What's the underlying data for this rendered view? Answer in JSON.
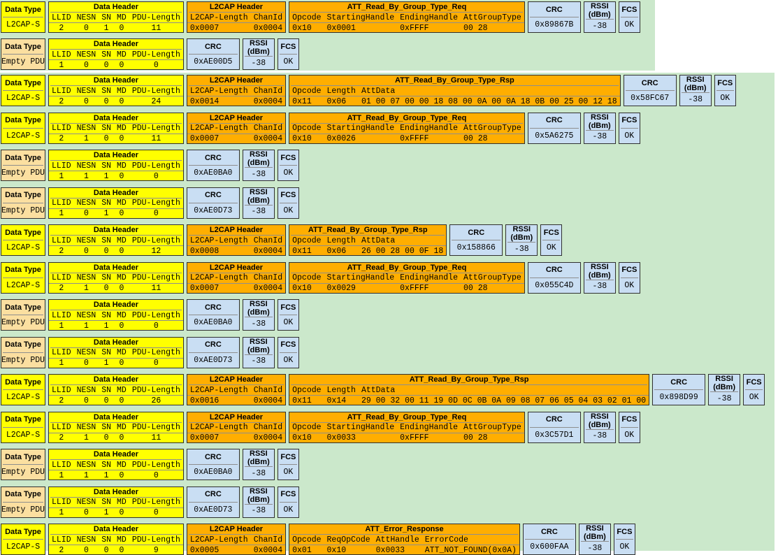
{
  "colors": {
    "panel_green": "#cbe8cb",
    "field_yellow": "#ffff00",
    "field_orange": "#ffae00",
    "field_blue": "#c9def3",
    "field_wheat": "#fbdfa0",
    "box_border": "#303030",
    "separator": "#8e8e8e"
  },
  "labels": {
    "data_type": "Data Type",
    "data_header": "Data Header",
    "data_header_fields": [
      "LLID",
      "NESN",
      "SN",
      "MD",
      "PDU-Length"
    ],
    "l2cap_header": "L2CAP Header",
    "l2cap_fields": [
      "L2CAP-Length",
      "ChanId"
    ],
    "crc": "CRC",
    "rssi_lines": [
      "RSSI",
      "(dBm)"
    ],
    "fcs": "FCS"
  },
  "packets": [
    {
      "panel": 0,
      "data_type": "L2CAP-S",
      "header": [
        "2",
        "0",
        "1",
        "0",
        "11"
      ],
      "l2cap": [
        "0x0007",
        "0x0004"
      ],
      "att": {
        "title": "ATT_Read_By_Group_Type_Req",
        "fields": [
          [
            "Opcode",
            "0x10"
          ],
          [
            "StartingHandle",
            "0x0001"
          ],
          [
            "EndingHandle",
            "0xFFFF"
          ],
          [
            "AttGroupType",
            "00 28"
          ]
        ]
      },
      "crc": "0x89867B",
      "rssi": "-38",
      "fcs": "OK"
    },
    {
      "panel": 0,
      "data_type": "Empty PDU",
      "header": [
        "1",
        "0",
        "0",
        "0",
        "0"
      ],
      "crc": "0xAE00D5",
      "rssi": "-38",
      "fcs": "OK"
    },
    {
      "panel": 1,
      "data_type": "L2CAP-S",
      "header": [
        "2",
        "0",
        "0",
        "0",
        "24"
      ],
      "l2cap": [
        "0x0014",
        "0x0004"
      ],
      "att": {
        "title": "ATT_Read_By_Group_Type_Rsp",
        "fields": [
          [
            "Opcode",
            "0x11"
          ],
          [
            "Length",
            "0x06"
          ],
          [
            "AttData",
            "01 00 07 00 00 18 08 00 0A 00 0A 18 0B 00 25 00 12 18"
          ]
        ]
      },
      "crc": "0x58FC67",
      "rssi": "-38",
      "fcs": "OK"
    },
    {
      "panel": 1,
      "data_type": "L2CAP-S",
      "header": [
        "2",
        "1",
        "0",
        "0",
        "11"
      ],
      "l2cap": [
        "0x0007",
        "0x0004"
      ],
      "att": {
        "title": "ATT_Read_By_Group_Type_Req",
        "fields": [
          [
            "Opcode",
            "0x10"
          ],
          [
            "StartingHandle",
            "0x0026"
          ],
          [
            "EndingHandle",
            "0xFFFF"
          ],
          [
            "AttGroupType",
            "00 28"
          ]
        ]
      },
      "crc": "0x5A6275",
      "rssi": "-38",
      "fcs": "OK"
    },
    {
      "panel": 1,
      "data_type": "Empty PDU",
      "header": [
        "1",
        "1",
        "1",
        "0",
        "0"
      ],
      "crc": "0xAE0BA0",
      "rssi": "-38",
      "fcs": "OK"
    },
    {
      "panel": 1,
      "data_type": "Empty PDU",
      "header": [
        "1",
        "0",
        "1",
        "0",
        "0"
      ],
      "crc": "0xAE0D73",
      "rssi": "-38",
      "fcs": "OK"
    },
    {
      "panel": 1,
      "data_type": "L2CAP-S",
      "header": [
        "2",
        "0",
        "0",
        "0",
        "12"
      ],
      "l2cap": [
        "0x0008",
        "0x0004"
      ],
      "att": {
        "title": "ATT_Read_By_Group_Type_Rsp",
        "fields": [
          [
            "Opcode",
            "0x11"
          ],
          [
            "Length",
            "0x06"
          ],
          [
            "AttData",
            "26 00 28 00 0F 18"
          ]
        ]
      },
      "crc": "0x158866",
      "rssi": "-38",
      "fcs": "OK"
    },
    {
      "panel": 1,
      "data_type": "L2CAP-S",
      "header": [
        "2",
        "1",
        "0",
        "0",
        "11"
      ],
      "l2cap": [
        "0x0007",
        "0x0004"
      ],
      "att": {
        "title": "ATT_Read_By_Group_Type_Req",
        "fields": [
          [
            "Opcode",
            "0x10"
          ],
          [
            "StartingHandle",
            "0x0029"
          ],
          [
            "EndingHandle",
            "0xFFFF"
          ],
          [
            "AttGroupType",
            "00 28"
          ]
        ]
      },
      "crc": "0x055C4D",
      "rssi": "-38",
      "fcs": "OK"
    },
    {
      "panel": 1,
      "data_type": "Empty PDU",
      "header": [
        "1",
        "1",
        "1",
        "0",
        "0"
      ],
      "crc": "0xAE0BA0",
      "rssi": "-38",
      "fcs": "OK"
    },
    {
      "panel": 1,
      "data_type": "Empty PDU",
      "header": [
        "1",
        "0",
        "1",
        "0",
        "0"
      ],
      "crc": "0xAE0D73",
      "rssi": "-38",
      "fcs": "OK"
    },
    {
      "panel": 1,
      "data_type": "L2CAP-S",
      "header": [
        "2",
        "0",
        "0",
        "0",
        "26"
      ],
      "l2cap": [
        "0x0016",
        "0x0004"
      ],
      "att": {
        "title": "ATT_Read_By_Group_Type_Rsp",
        "fields": [
          [
            "Opcode",
            "0x11"
          ],
          [
            "Length",
            "0x14"
          ],
          [
            "AttData",
            "29 00 32 00 11 19 0D 0C 0B 0A 09 08 07 06 05 04 03 02 01 00"
          ]
        ]
      },
      "crc": "0x898D99",
      "rssi": "-38",
      "fcs": "OK"
    },
    {
      "panel": 1,
      "data_type": "L2CAP-S",
      "header": [
        "2",
        "1",
        "0",
        "0",
        "11"
      ],
      "l2cap": [
        "0x0007",
        "0x0004"
      ],
      "att": {
        "title": "ATT_Read_By_Group_Type_Req",
        "fields": [
          [
            "Opcode",
            "0x10"
          ],
          [
            "StartingHandle",
            "0x0033"
          ],
          [
            "EndingHandle",
            "0xFFFF"
          ],
          [
            "AttGroupType",
            "00 28"
          ]
        ]
      },
      "crc": "0x3C57D1",
      "rssi": "-38",
      "fcs": "OK"
    },
    {
      "panel": 1,
      "data_type": "Empty PDU",
      "header": [
        "1",
        "1",
        "1",
        "0",
        "0"
      ],
      "crc": "0xAE0BA0",
      "rssi": "-38",
      "fcs": "OK"
    },
    {
      "panel": 1,
      "data_type": "Empty PDU",
      "header": [
        "1",
        "0",
        "1",
        "0",
        "0"
      ],
      "crc": "0xAE0D73",
      "rssi": "-38",
      "fcs": "OK"
    },
    {
      "panel": 1,
      "data_type": "L2CAP-S",
      "header": [
        "2",
        "0",
        "0",
        "0",
        "9"
      ],
      "l2cap": [
        "0x0005",
        "0x0004"
      ],
      "att": {
        "title": "ATT_Error_Response",
        "fields": [
          [
            "Opcode",
            "0x01"
          ],
          [
            "ReqOpCode",
            "0x10"
          ],
          [
            "AttHandle",
            "0x0033"
          ],
          [
            "ErrorCode",
            "ATT_NOT_FOUND(0x0A)"
          ]
        ]
      },
      "crc": "0x600FAA",
      "rssi": "-38",
      "fcs": "OK"
    }
  ]
}
